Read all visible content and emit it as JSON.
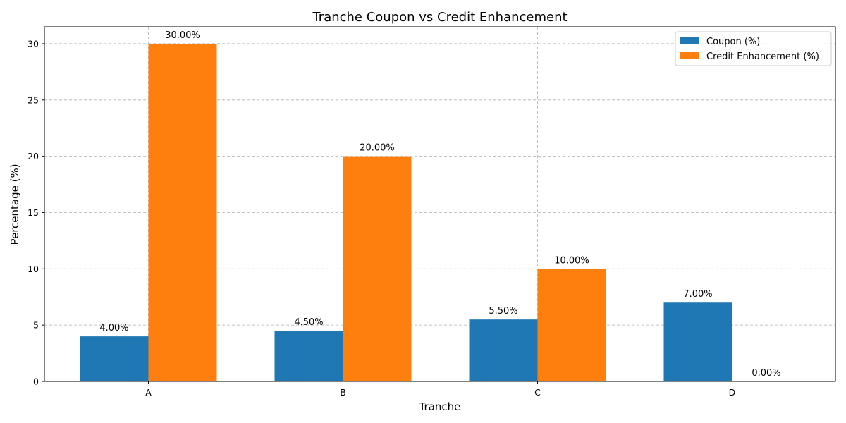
{
  "chart_data": {
    "type": "bar",
    "title": "Tranche Coupon vs Credit Enhancement",
    "xlabel": "Tranche",
    "ylabel": "Percentage (%)",
    "categories": [
      "A",
      "B",
      "C",
      "D"
    ],
    "series": [
      {
        "name": "Coupon (%)",
        "values": [
          4.0,
          4.5,
          5.5,
          7.0
        ],
        "labels": [
          "4.00%",
          "4.50%",
          "5.50%",
          "7.00%"
        ],
        "color": "#1f77b4"
      },
      {
        "name": "Credit Enhancement (%)",
        "values": [
          30.0,
          20.0,
          10.0,
          0.0
        ],
        "labels": [
          "30.00%",
          "20.00%",
          "10.00%",
          "0.00%"
        ],
        "color": "#ff7f0e"
      }
    ],
    "ylim": [
      0,
      31.5
    ],
    "yticks": [
      0,
      5,
      10,
      15,
      20,
      25,
      30
    ],
    "ytick_labels": [
      "0",
      "5",
      "10",
      "15",
      "20",
      "25",
      "30"
    ],
    "grid": true,
    "legend": "top-right"
  }
}
